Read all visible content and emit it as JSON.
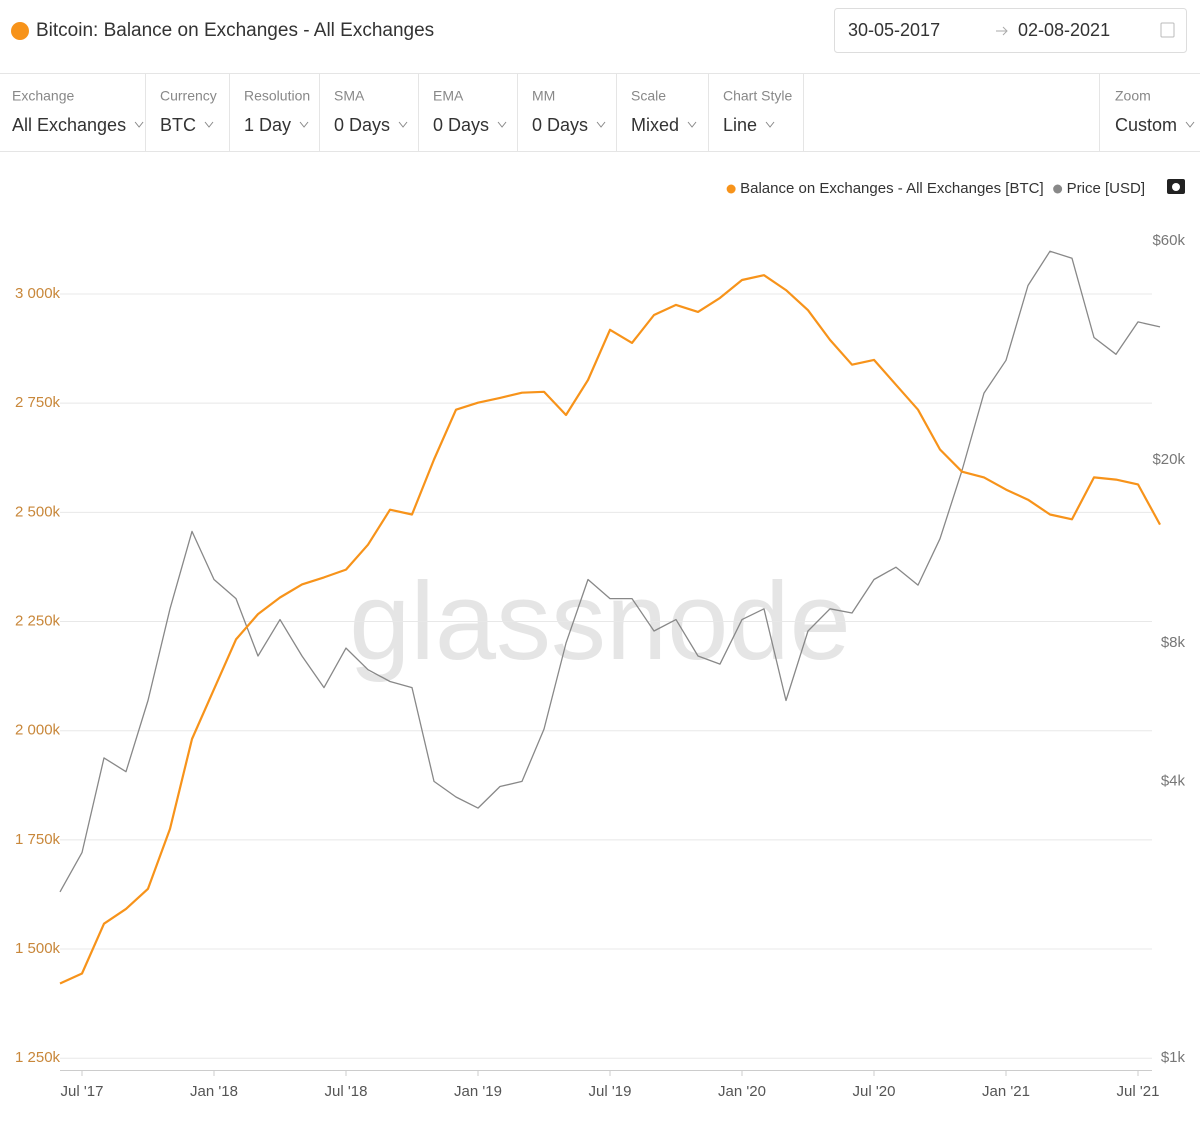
{
  "header": {
    "title": "Bitcoin: Balance on Exchanges - All Exchanges",
    "date_from": "30-05-2017",
    "date_to": "02-08-2021"
  },
  "controls": [
    {
      "label": "Exchange",
      "value": "All Exchanges"
    },
    {
      "label": "Currency",
      "value": "BTC"
    },
    {
      "label": "Resolution",
      "value": "1 Day"
    },
    {
      "label": "SMA",
      "value": "0 Days"
    },
    {
      "label": "EMA",
      "value": "0 Days"
    },
    {
      "label": "MM",
      "value": "0 Days"
    },
    {
      "label": "Scale",
      "value": "Mixed"
    },
    {
      "label": "Chart Style",
      "value": "Line"
    },
    {
      "label": "Zoom",
      "value": "Custom"
    }
  ],
  "chart_data": {
    "type": "line",
    "watermark": "glassnode",
    "x": [
      "2017-06",
      "2017-07",
      "2017-08",
      "2017-09",
      "2017-10",
      "2017-11",
      "2017-12",
      "2018-01",
      "2018-02",
      "2018-03",
      "2018-04",
      "2018-05",
      "2018-06",
      "2018-07",
      "2018-08",
      "2018-09",
      "2018-10",
      "2018-11",
      "2018-12",
      "2019-01",
      "2019-02",
      "2019-03",
      "2019-04",
      "2019-05",
      "2019-06",
      "2019-07",
      "2019-08",
      "2019-09",
      "2019-10",
      "2019-11",
      "2019-12",
      "2020-01",
      "2020-02",
      "2020-03",
      "2020-04",
      "2020-05",
      "2020-06",
      "2020-07",
      "2020-08",
      "2020-09",
      "2020-10",
      "2020-11",
      "2020-12",
      "2021-01",
      "2021-02",
      "2021-03",
      "2021-04",
      "2021-05",
      "2021-06",
      "2021-07",
      "2021-08"
    ],
    "series": [
      {
        "name": "Balance on Exchanges - All Exchanges [BTC]",
        "color": "#f7931a",
        "axis": "y",
        "values": [
          1421,
          1444,
          1558,
          1592,
          1638,
          1775,
          1981,
          2095,
          2209,
          2267,
          2305,
          2335,
          2351,
          2369,
          2426,
          2506,
          2495,
          2621,
          2735,
          2751,
          2762,
          2774,
          2776,
          2723,
          2803,
          2918,
          2888,
          2952,
          2975,
          2959,
          2991,
          3032,
          3043,
          3009,
          2963,
          2895,
          2838,
          2849,
          2792,
          2735,
          2644,
          2593,
          2580,
          2552,
          2529,
          2495,
          2484,
          2580,
          2575,
          2564,
          2472
        ]
      },
      {
        "name": "Price [USD]",
        "color": "#888888",
        "axis": "y2",
        "values": [
          2300,
          2800,
          4500,
          4200,
          6000,
          9500,
          14000,
          11000,
          10000,
          7500,
          9000,
          7500,
          6400,
          7800,
          7000,
          6600,
          6400,
          4000,
          3700,
          3500,
          3900,
          4000,
          5200,
          8000,
          11000,
          10000,
          10000,
          8500,
          9000,
          7500,
          7200,
          9000,
          9500,
          6000,
          8500,
          9500,
          9300,
          11000,
          11700,
          10700,
          13500,
          19000,
          28000,
          33000,
          48000,
          57000,
          55000,
          37000,
          34000,
          40000,
          39000
        ]
      }
    ],
    "xlim": [
      "2017-06",
      "2021-08"
    ],
    "xticks": [
      {
        "value": "2017-07",
        "label": "Jul '17"
      },
      {
        "value": "2018-01",
        "label": "Jan '18"
      },
      {
        "value": "2018-07",
        "label": "Jul '18"
      },
      {
        "value": "2019-01",
        "label": "Jan '19"
      },
      {
        "value": "2019-07",
        "label": "Jul '19"
      },
      {
        "value": "2020-01",
        "label": "Jan '20"
      },
      {
        "value": "2020-07",
        "label": "Jul '20"
      },
      {
        "value": "2021-01",
        "label": "Jan '21"
      },
      {
        "value": "2021-07",
        "label": "Jul '21"
      }
    ],
    "ylim": [
      1223,
      3158
    ],
    "yticks": [
      {
        "value": 1250,
        "label": "1 250k"
      },
      {
        "value": 1500,
        "label": "1 500k"
      },
      {
        "value": 1750,
        "label": "1 750k"
      },
      {
        "value": 2000,
        "label": "2 000k"
      },
      {
        "value": 2250,
        "label": "2 250k"
      },
      {
        "value": 2500,
        "label": "2 500k"
      },
      {
        "value": 2750,
        "label": "2 750k"
      },
      {
        "value": 3000,
        "label": "3 000k"
      }
    ],
    "y2lim": [
      942,
      65000
    ],
    "y2log": true,
    "y2ticks": [
      {
        "value": 1000,
        "label": "$1k"
      },
      {
        "value": 4000,
        "label": "$4k"
      },
      {
        "value": 8000,
        "label": "$8k"
      },
      {
        "value": 20000,
        "label": "$20k"
      },
      {
        "value": 60000,
        "label": "$60k"
      }
    ],
    "grid": true,
    "ytick_color": "#c8873a",
    "y2tick_color": "#777777",
    "legend": "top-right"
  }
}
